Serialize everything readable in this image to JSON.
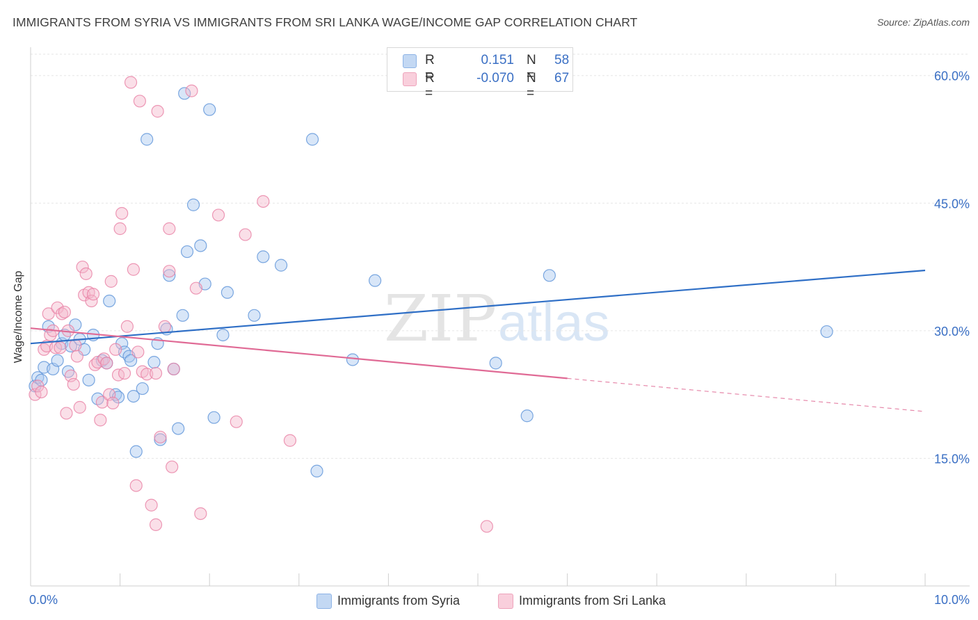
{
  "title": "IMMIGRANTS FROM SYRIA VS IMMIGRANTS FROM SRI LANKA WAGE/INCOME GAP CORRELATION CHART",
  "source": "Source: ZipAtlas.com",
  "watermark": {
    "zip": "ZIP",
    "atlas": "atlas"
  },
  "stats": [
    {
      "r_label": "R =",
      "r": "0.151",
      "n_label": "N =",
      "n": "58",
      "color": "#a9c8ef"
    },
    {
      "r_label": "R =",
      "r": "-0.070",
      "n_label": "N =",
      "n": "67",
      "color": "#f5b8cb"
    }
  ],
  "legend": [
    {
      "label": "Immigrants from Syria",
      "color": "#a9c8ef"
    },
    {
      "label": "Immigrants from Sri Lanka",
      "color": "#f5b8cb"
    }
  ],
  "chart_data": {
    "type": "scatter",
    "title": "IMMIGRANTS FROM SYRIA VS IMMIGRANTS FROM SRI LANKA WAGE/INCOME GAP CORRELATION CHART",
    "xlabel": "",
    "ylabel": "Wage/Income Gap",
    "xlim": [
      0,
      10
    ],
    "ylim": [
      0,
      63
    ],
    "x_tick_labels": [
      {
        "value": 0,
        "label": "0.0%"
      },
      {
        "value": 10,
        "label": "10.0%"
      }
    ],
    "y_tick_labels": [
      {
        "value": 15,
        "label": "15.0%"
      },
      {
        "value": 30,
        "label": "30.0%"
      },
      {
        "value": 45,
        "label": "45.0%"
      },
      {
        "value": 60,
        "label": "60.0%"
      }
    ],
    "grid": true,
    "series": [
      {
        "name": "Immigrants from Syria",
        "color": "#5b92d8",
        "fill": "#a9c8ef",
        "trend": {
          "x": [
            0,
            10
          ],
          "y": [
            28.5,
            37.1
          ],
          "color": "#2f6fc6"
        },
        "points": [
          [
            0.05,
            23.5
          ],
          [
            0.08,
            24.5
          ],
          [
            0.12,
            24.2
          ],
          [
            0.15,
            25.7
          ],
          [
            0.2,
            30.5
          ],
          [
            0.25,
            25.5
          ],
          [
            0.3,
            26.5
          ],
          [
            0.35,
            28.5
          ],
          [
            0.38,
            29.5
          ],
          [
            0.42,
            25.2
          ],
          [
            0.45,
            28.2
          ],
          [
            0.5,
            30.7
          ],
          [
            0.55,
            29.0
          ],
          [
            0.6,
            27.8
          ],
          [
            0.65,
            24.2
          ],
          [
            0.7,
            29.5
          ],
          [
            0.75,
            22.0
          ],
          [
            0.8,
            26.5
          ],
          [
            0.85,
            26.2
          ],
          [
            0.88,
            33.5
          ],
          [
            0.95,
            22.5
          ],
          [
            1.02,
            28.5
          ],
          [
            1.05,
            27.5
          ],
          [
            1.1,
            27.0
          ],
          [
            1.12,
            26.5
          ],
          [
            1.18,
            15.8
          ],
          [
            1.25,
            23.2
          ],
          [
            1.3,
            52.5
          ],
          [
            1.38,
            26.3
          ],
          [
            1.42,
            28.5
          ],
          [
            1.45,
            17.2
          ],
          [
            1.52,
            30.2
          ],
          [
            1.55,
            36.5
          ],
          [
            1.6,
            25.5
          ],
          [
            1.65,
            18.5
          ],
          [
            1.7,
            31.8
          ],
          [
            1.72,
            57.9
          ],
          [
            1.75,
            39.3
          ],
          [
            1.82,
            44.8
          ],
          [
            1.9,
            40.0
          ],
          [
            1.95,
            35.5
          ],
          [
            2.0,
            56.0
          ],
          [
            2.05,
            19.8
          ],
          [
            2.15,
            29.5
          ],
          [
            2.2,
            34.5
          ],
          [
            2.5,
            31.8
          ],
          [
            2.6,
            38.7
          ],
          [
            2.8,
            37.7
          ],
          [
            3.15,
            52.5
          ],
          [
            3.2,
            13.5
          ],
          [
            3.6,
            26.6
          ],
          [
            3.85,
            35.9
          ],
          [
            5.2,
            26.2
          ],
          [
            5.55,
            20.0
          ],
          [
            5.8,
            36.5
          ],
          [
            8.9,
            29.9
          ],
          [
            0.98,
            22.2
          ],
          [
            1.15,
            22.3
          ]
        ]
      },
      {
        "name": "Immigrants from Sri Lanka",
        "color": "#e880a4",
        "fill": "#f5b8cb",
        "trend": {
          "x": [
            0,
            6.0
          ],
          "y": [
            30.3,
            24.4
          ],
          "dashed_x": [
            6.0,
            10
          ],
          "dashed_y": [
            24.4,
            20.5
          ],
          "color": "#e06a95"
        },
        "points": [
          [
            0.05,
            22.5
          ],
          [
            0.08,
            23.5
          ],
          [
            0.12,
            22.8
          ],
          [
            0.15,
            27.8
          ],
          [
            0.18,
            28.2
          ],
          [
            0.2,
            32.0
          ],
          [
            0.22,
            29.5
          ],
          [
            0.25,
            30.0
          ],
          [
            0.28,
            28.0
          ],
          [
            0.3,
            32.7
          ],
          [
            0.33,
            28.0
          ],
          [
            0.35,
            32.0
          ],
          [
            0.38,
            32.2
          ],
          [
            0.4,
            20.3
          ],
          [
            0.42,
            30.0
          ],
          [
            0.45,
            24.7
          ],
          [
            0.48,
            23.7
          ],
          [
            0.5,
            28.3
          ],
          [
            0.52,
            27.0
          ],
          [
            0.55,
            21.0
          ],
          [
            0.58,
            37.5
          ],
          [
            0.6,
            34.2
          ],
          [
            0.62,
            36.7
          ],
          [
            0.65,
            34.5
          ],
          [
            0.68,
            33.5
          ],
          [
            0.7,
            34.3
          ],
          [
            0.72,
            26.0
          ],
          [
            0.75,
            26.3
          ],
          [
            0.78,
            19.5
          ],
          [
            0.8,
            21.6
          ],
          [
            0.82,
            26.7
          ],
          [
            0.85,
            26.2
          ],
          [
            0.88,
            22.5
          ],
          [
            0.9,
            35.8
          ],
          [
            0.92,
            21.5
          ],
          [
            0.95,
            27.8
          ],
          [
            0.98,
            24.8
          ],
          [
            1.0,
            42.0
          ],
          [
            1.02,
            43.8
          ],
          [
            1.05,
            25.0
          ],
          [
            1.08,
            30.5
          ],
          [
            1.12,
            59.2
          ],
          [
            1.15,
            37.2
          ],
          [
            1.18,
            11.8
          ],
          [
            1.22,
            57.0
          ],
          [
            1.25,
            25.2
          ],
          [
            1.3,
            24.9
          ],
          [
            1.35,
            9.5
          ],
          [
            1.4,
            7.2
          ],
          [
            1.42,
            55.8
          ],
          [
            1.45,
            17.5
          ],
          [
            1.5,
            30.5
          ],
          [
            1.55,
            42.0
          ],
          [
            1.58,
            14.0
          ],
          [
            1.6,
            25.5
          ],
          [
            1.8,
            58.2
          ],
          [
            1.85,
            35.0
          ],
          [
            1.9,
            8.5
          ],
          [
            2.1,
            43.6
          ],
          [
            2.3,
            19.3
          ],
          [
            2.4,
            41.3
          ],
          [
            2.6,
            45.2
          ],
          [
            2.9,
            17.1
          ],
          [
            5.1,
            7.0
          ],
          [
            1.2,
            27.5
          ],
          [
            1.4,
            25.0
          ],
          [
            1.55,
            37.0
          ]
        ]
      }
    ]
  }
}
